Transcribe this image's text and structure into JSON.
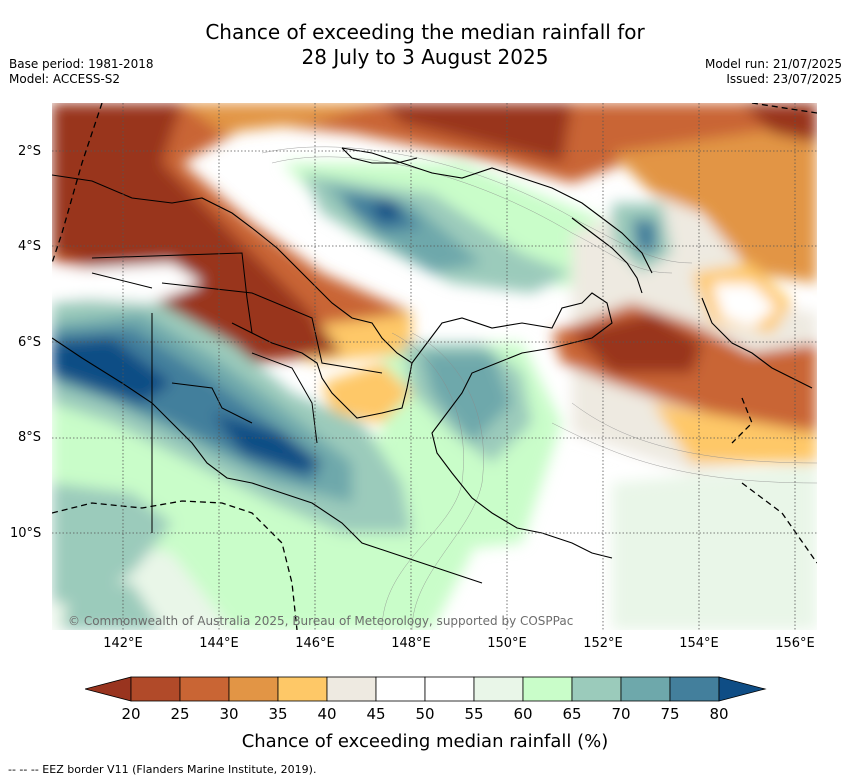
{
  "title_line1": "Chance of exceeding the median rainfall for",
  "title_line2": "28 July to 3 August 2025",
  "base_period": "Base period: 1981-2018",
  "model": "Model: ACCESS-S2",
  "model_run": "Model run: 21/07/2025",
  "issued": "Issued: 23/07/2025",
  "copyright": "© Commonwealth of Australia 2025, Bureau of Meteorology, supported by COSPPac",
  "lat_labels": [
    "2°S",
    "4°S",
    "6°S",
    "8°S",
    "10°S"
  ],
  "lon_labels": [
    "142°E",
    "144°E",
    "146°E",
    "148°E",
    "150°E",
    "152°E",
    "154°E",
    "156°E"
  ],
  "colorbar": {
    "label": "Chance of exceeding median rainfall (%)",
    "ticks": [
      "20",
      "25",
      "30",
      "35",
      "40",
      "45",
      "50",
      "55",
      "60",
      "65",
      "70",
      "75",
      "80"
    ],
    "colors": [
      "#99341f",
      "#b14a29",
      "#c96534",
      "#e29545",
      "#fec867",
      "#eeeae1",
      "#ffffff",
      "#ffffff",
      "#e9f6e8",
      "#c9fdc9",
      "#9bcbbb",
      "#6ea8ab",
      "#437f9c",
      "#0f4d85"
    ]
  },
  "footnote": "--  --  -- EEZ border V11 (Flanders Marine Institute, 2019).",
  "colors": {
    "dry_strong": "#99341f",
    "dry": "#c96534",
    "dry_mild": "#fec867",
    "neutral": "#ffffff",
    "wet_mild": "#c9fdc9",
    "wet": "#6ea8ab",
    "wet_strong": "#0f4d85"
  }
}
